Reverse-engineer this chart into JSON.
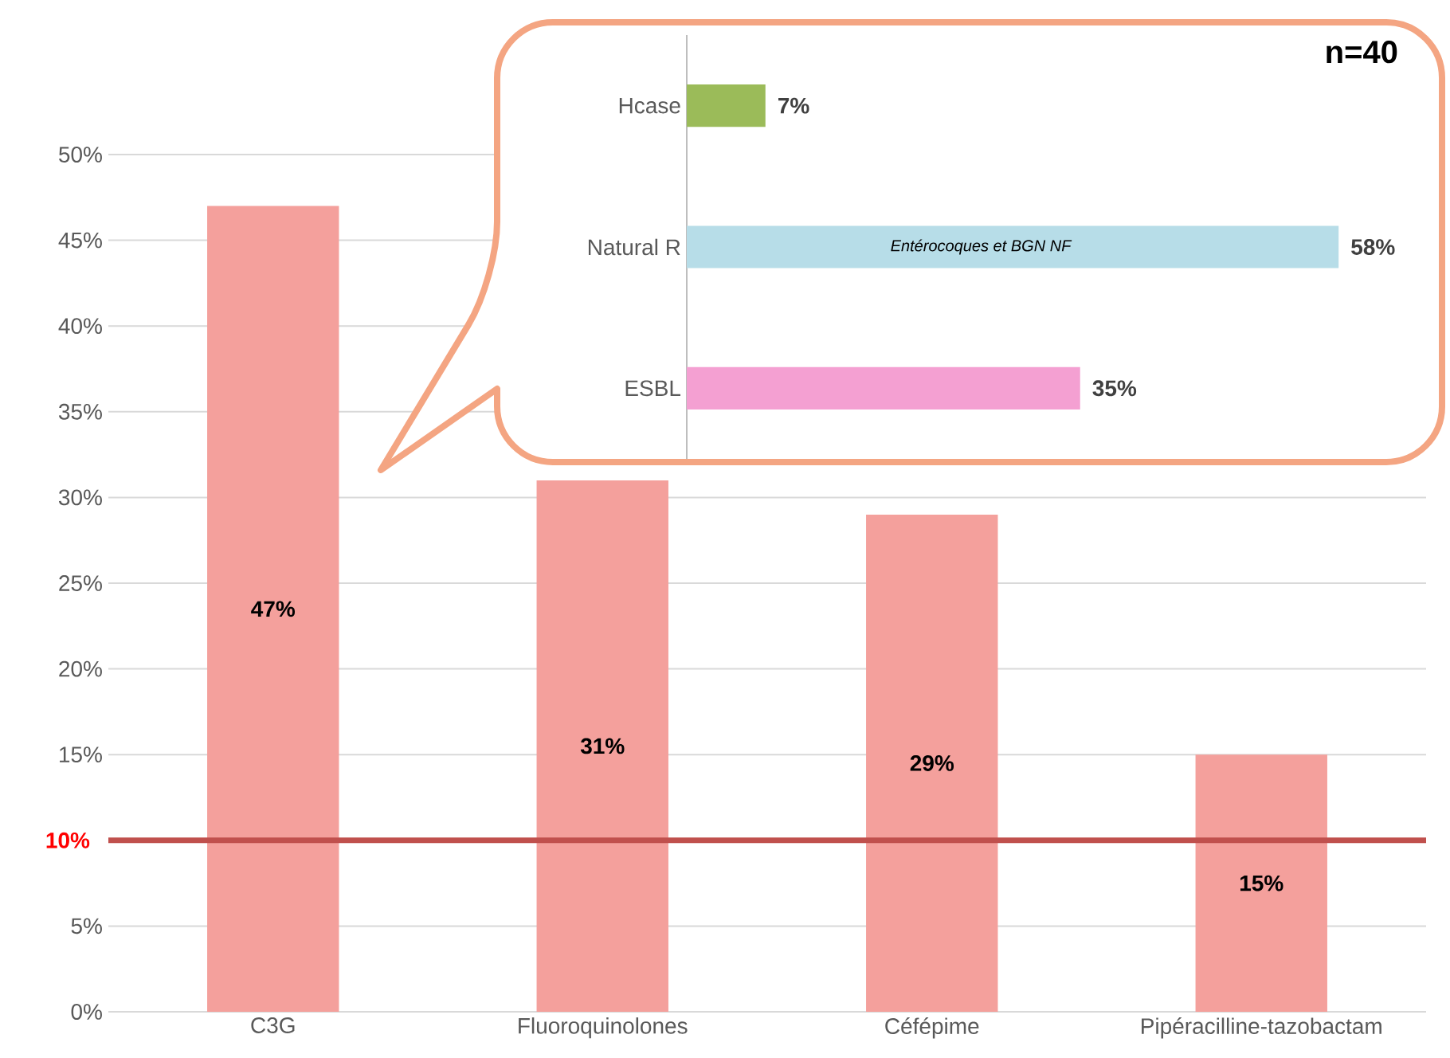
{
  "chart_data": [
    {
      "type": "bar",
      "categories": [
        "C3G",
        "Fluoroquinolones",
        "Céfépime",
        "Pipéracilline-tazobactam"
      ],
      "values": [
        47,
        31,
        29,
        15
      ],
      "color": "#f4a09c",
      "value_labels": [
        "47%",
        "31%",
        "29%",
        "15%"
      ],
      "ylim": [
        0,
        50
      ],
      "yticks": [
        {
          "value": 0,
          "label": "0%"
        },
        {
          "value": 5,
          "label": "5%"
        },
        {
          "value": 10,
          "label": null
        },
        {
          "value": 15,
          "label": "15%"
        },
        {
          "value": 20,
          "label": "20%"
        },
        {
          "value": 25,
          "label": "25%"
        },
        {
          "value": 30,
          "label": "30%"
        },
        {
          "value": 35,
          "label": "35%"
        },
        {
          "value": 40,
          "label": "40%"
        },
        {
          "value": 45,
          "label": "45%"
        },
        {
          "value": 50,
          "label": "50%"
        }
      ],
      "grid": "y",
      "ref_lines": [
        {
          "axis": "y",
          "value": 10,
          "label": "10%",
          "color": "#c0504d"
        }
      ]
    },
    {
      "type": "bar",
      "orientation": "horizontal",
      "categories": [
        "Hcase",
        "Natural R",
        "ESBL"
      ],
      "values": [
        7,
        58,
        35
      ],
      "colors": [
        "#9bbb59",
        "#b7dde8",
        "#f4a0d2"
      ],
      "value_labels": [
        "7%",
        "58%",
        "35%"
      ],
      "tick_labels": "y",
      "annotations": [
        "n=40",
        "Entérocoques et BGN NF"
      ]
    }
  ]
}
